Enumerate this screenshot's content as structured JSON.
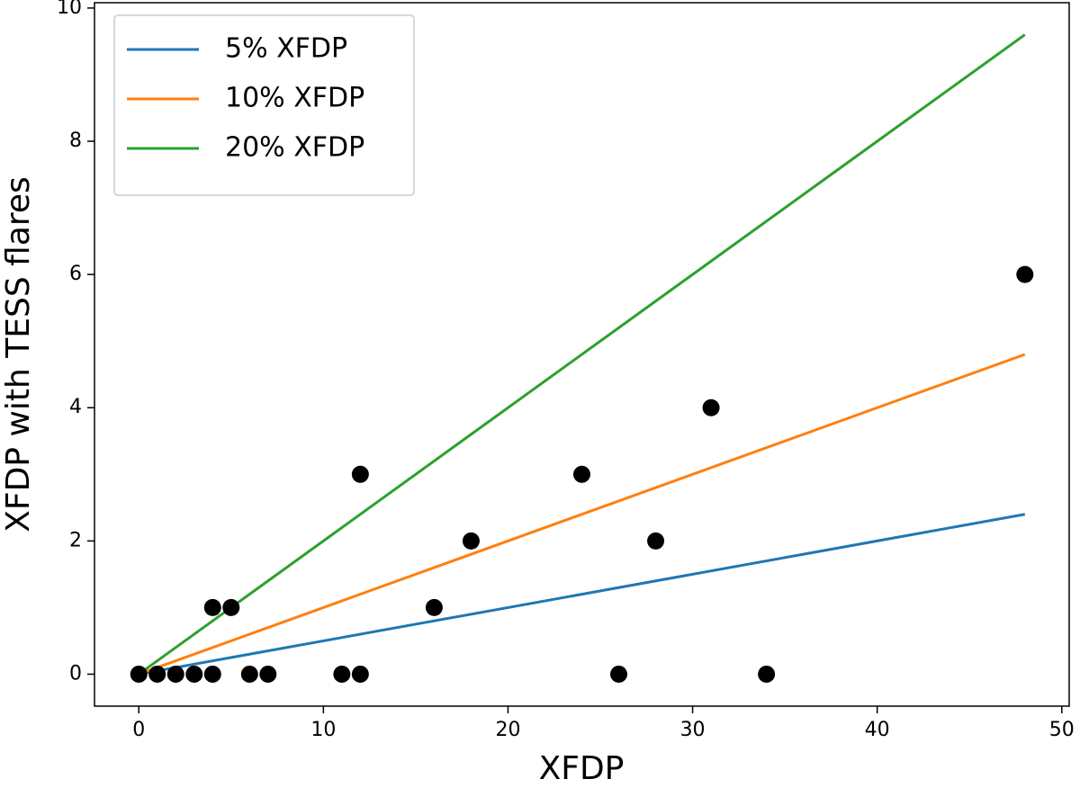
{
  "chart_data": {
    "type": "scatter",
    "xlabel": "XFDP",
    "ylabel": "XFDP with TESS flares",
    "xlim": [
      -2.4,
      50.4
    ],
    "ylim": [
      -0.48,
      10.08
    ],
    "xticks": [
      0,
      10,
      20,
      30,
      40,
      50
    ],
    "yticks": [
      0,
      2,
      4,
      6,
      8,
      10
    ],
    "legend": "upper left",
    "series": [
      {
        "name": "5% XFDP",
        "type": "line",
        "color": "#1f77b4",
        "x": [
          0,
          48
        ],
        "values": [
          0,
          2.4
        ]
      },
      {
        "name": "10% XFDP",
        "type": "line",
        "color": "#ff7f0e",
        "x": [
          0,
          48
        ],
        "values": [
          0,
          4.8
        ]
      },
      {
        "name": "20% XFDP",
        "type": "line",
        "color": "#2ca02c",
        "x": [
          0,
          48
        ],
        "values": [
          0,
          9.6
        ]
      },
      {
        "type": "scatter",
        "color": "#000000",
        "x": [
          0,
          1,
          2,
          3,
          4,
          4,
          5,
          6,
          7,
          11,
          12,
          12,
          16,
          18,
          24,
          26,
          28,
          31,
          34,
          48
        ],
        "values": [
          0,
          0,
          0,
          0,
          0,
          1,
          1,
          0,
          0,
          0,
          0,
          3,
          1,
          2,
          3,
          0,
          2,
          4,
          0,
          6
        ]
      }
    ]
  }
}
